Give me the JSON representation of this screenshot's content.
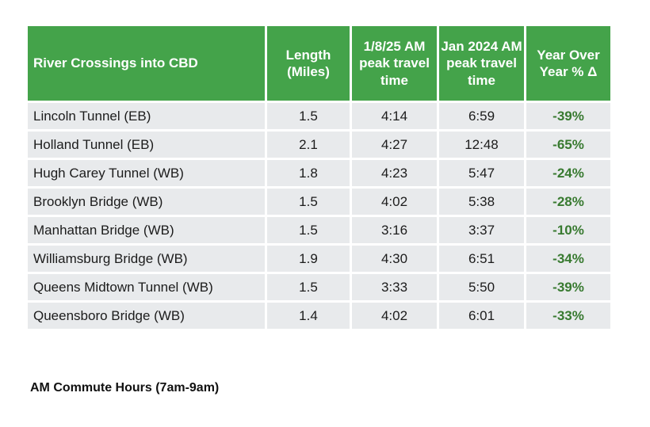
{
  "chart_data": {
    "type": "table",
    "columns": [
      "River Crossings into CBD",
      "Length (Miles)",
      "1/8/25 AM peak travel time",
      "Jan 2024 AM peak travel time",
      "Year Over Year % Δ"
    ],
    "rows": [
      [
        "Lincoln Tunnel (EB)",
        "1.5",
        "4:14",
        "6:59",
        "-39%"
      ],
      [
        "Holland Tunnel (EB)",
        "2.1",
        "4:27",
        "12:48",
        "-65%"
      ],
      [
        "Hugh Carey Tunnel (WB)",
        "1.8",
        "4:23",
        "5:47",
        "-24%"
      ],
      [
        "Brooklyn Bridge (WB)",
        "1.5",
        "4:02",
        "5:38",
        "-28%"
      ],
      [
        "Manhattan Bridge (WB)",
        "1.5",
        "3:16",
        "3:37",
        "-10%"
      ],
      [
        "Williamsburg Bridge (WB)",
        "1.9",
        "4:30",
        "6:51",
        "-34%"
      ],
      [
        "Queens Midtown Tunnel (WB)",
        "1.5",
        "3:33",
        "5:50",
        "-39%"
      ],
      [
        "Queensboro Bridge (WB)",
        "1.4",
        "4:02",
        "6:01",
        "-33%"
      ]
    ],
    "footnote": "AM Commute Hours (7am-9am)",
    "legend_position": "none",
    "grid": "white separators between cells"
  },
  "colors": {
    "header_green": "#44A34A",
    "yoy_green": "#387A30",
    "row_bg": "#E8EAEC",
    "text_dark": "#1C1C1C"
  }
}
